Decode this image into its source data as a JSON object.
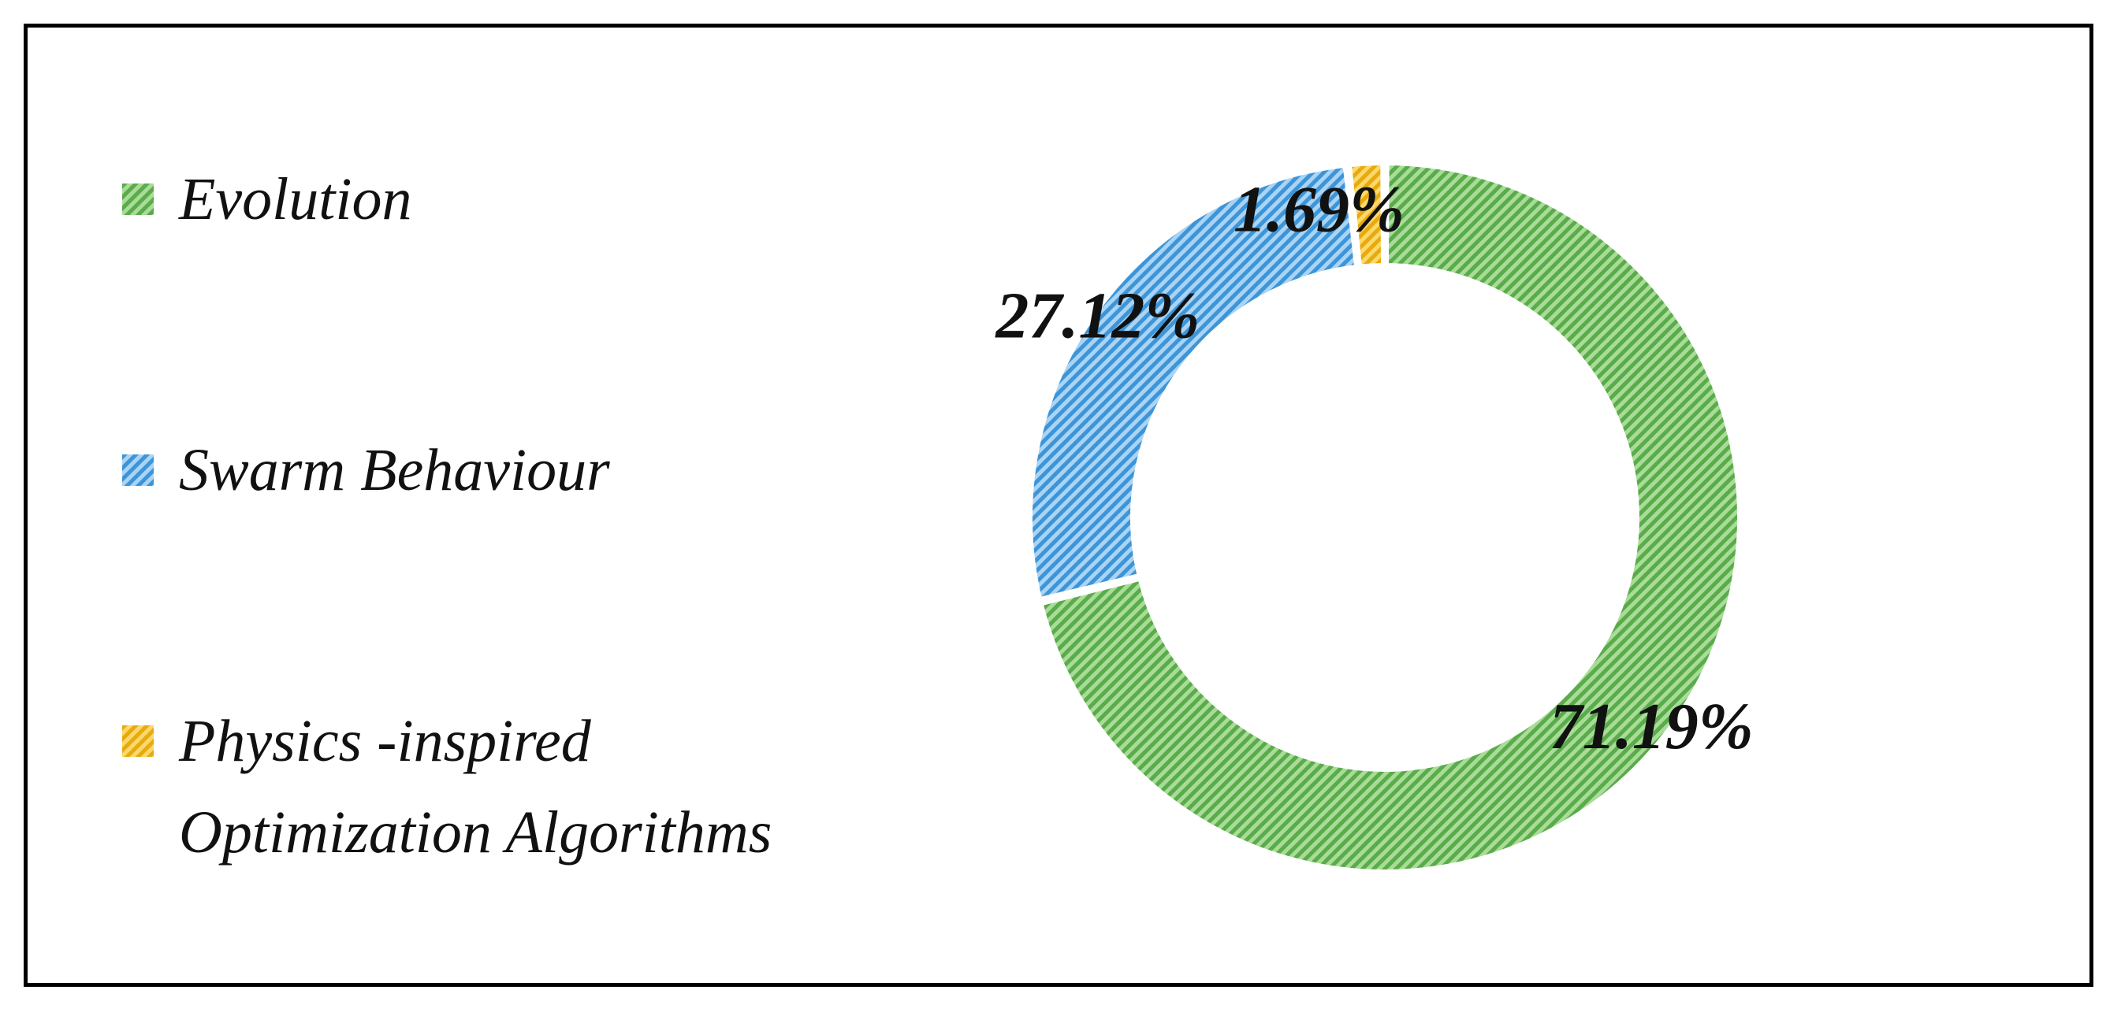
{
  "chart_data": {
    "type": "pie",
    "variant": "donut",
    "title": "",
    "series": [
      {
        "name": "Evolution",
        "value": 71.19,
        "label": "71.19%",
        "color": "#70c060",
        "pattern_fg": "#5aab4a",
        "pattern_bg": "#a8dc98"
      },
      {
        "name": "Swarm Behaviour",
        "value": 27.12,
        "label": "27.12%",
        "color": "#5aaee8",
        "pattern_fg": "#3d95d8",
        "pattern_bg": "#a9d4f5"
      },
      {
        "name": "Physics -inspired\nOptimization Algorithms",
        "value": 1.69,
        "label": "1.69%",
        "color": "#f5c030",
        "pattern_fg": "#e8aa10",
        "pattern_bg": "#fbd96a"
      }
    ],
    "legend_position": "left",
    "fill_style": "diagonal-hatch"
  }
}
